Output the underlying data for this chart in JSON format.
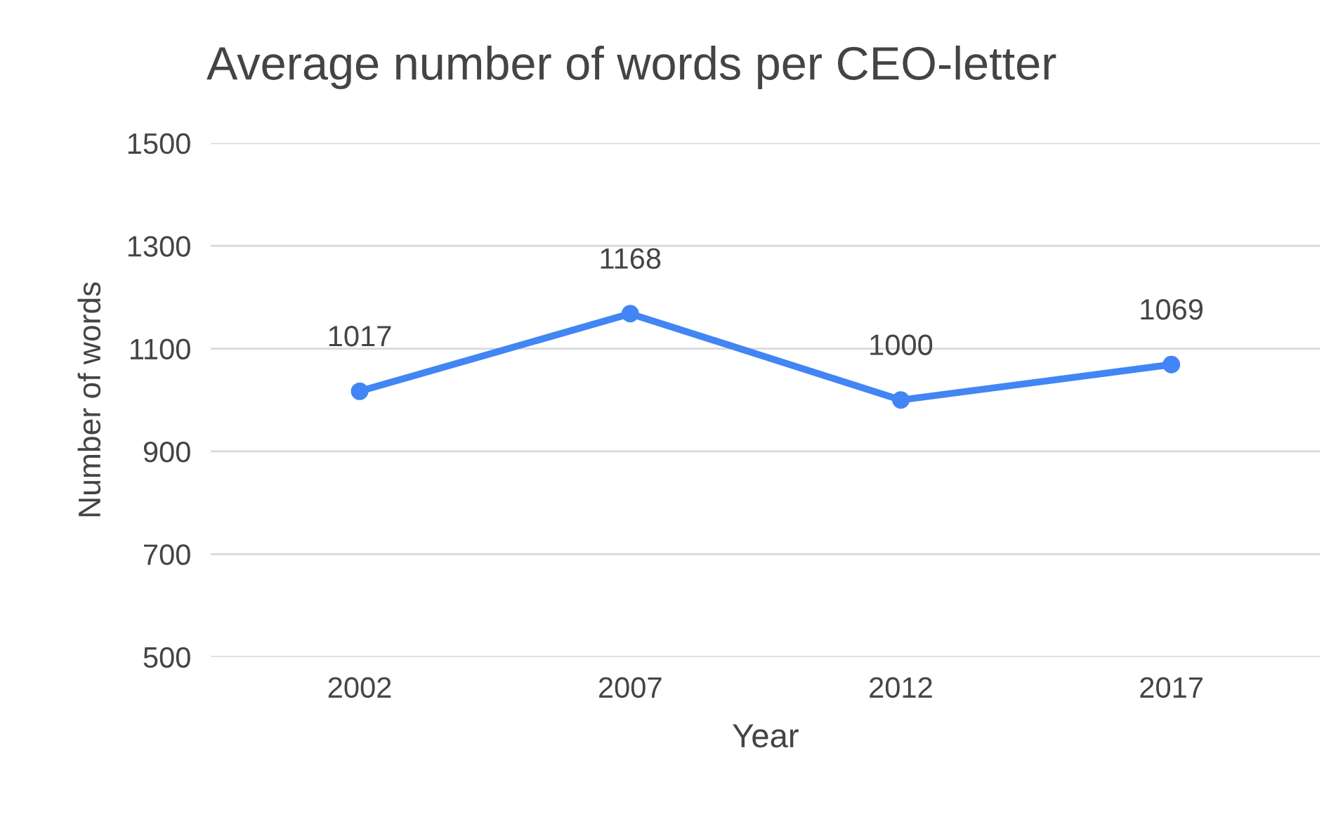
{
  "chart_data": {
    "type": "line",
    "title": "Average number of words per CEO-letter",
    "xlabel": "Year",
    "ylabel": "Number of words",
    "categories": [
      "2002",
      "2007",
      "2012",
      "2017"
    ],
    "series": [
      {
        "color": "#4285f4",
        "values": [
          1017,
          1168,
          1000,
          1069
        ]
      }
    ],
    "ylim": [
      500,
      1500
    ],
    "yticks": [
      500,
      700,
      900,
      1100,
      1300,
      1500
    ],
    "grid": "y",
    "marker": "circle",
    "line_style": "solid",
    "data_labels": true
  }
}
